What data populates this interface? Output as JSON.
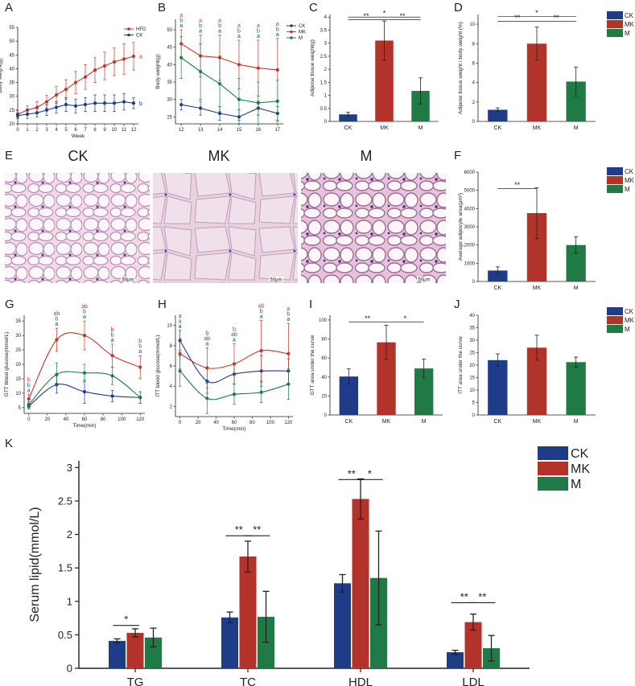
{
  "colors": {
    "CK": "#1f3c88",
    "MK": "#b3322a",
    "M": "#1f7a45",
    "HFD": "#c0392b"
  },
  "groups": [
    "CK",
    "MK",
    "M"
  ],
  "panel_labels": {
    "A": "A",
    "B": "B",
    "C": "C",
    "D": "D",
    "E": "E",
    "F": "F",
    "G": "G",
    "H": "H",
    "I": "I",
    "J": "J",
    "K": "K"
  },
  "histology": {
    "titles": [
      "CK",
      "MK",
      "M"
    ],
    "scale_label": "50μm"
  },
  "chart_data": [
    {
      "panel": "A",
      "type": "line",
      "ylabel": "Body weight(g)",
      "xlabel": "Week",
      "ylim": [
        20,
        55
      ],
      "yticks": [
        20,
        25,
        30,
        35,
        40,
        45,
        50,
        55
      ],
      "xlim": [
        0,
        12.5
      ],
      "xticks": [
        0,
        1,
        2,
        3,
        4,
        5,
        6,
        7,
        8,
        9,
        10,
        11,
        12
      ],
      "x": [
        0,
        1,
        2,
        3,
        4,
        5,
        6,
        7,
        8,
        9,
        10,
        11,
        12
      ],
      "series": [
        {
          "name": "HFD",
          "color": "#c0392b",
          "values": [
            23.5,
            25,
            26,
            28,
            30.5,
            32.5,
            35,
            37,
            39.5,
            41,
            42.5,
            43.5,
            44.5
          ],
          "err": [
            1.2,
            1.5,
            2,
            2.3,
            3,
            3.5,
            4,
            4.5,
            4.5,
            5,
            5,
            5.5,
            5
          ],
          "letter": "a"
        },
        {
          "name": "CK",
          "color": "#1f3c88",
          "values": [
            23,
            23.5,
            24,
            25,
            26,
            27,
            26.5,
            27,
            27.5,
            27.5,
            27.5,
            28,
            27.5
          ],
          "err": [
            1,
            1.5,
            1.5,
            2,
            2,
            2.5,
            2.5,
            2.5,
            3,
            3,
            3,
            3,
            2
          ],
          "letter": "b"
        }
      ]
    },
    {
      "panel": "B",
      "type": "line",
      "ylabel": "Body weight(g)",
      "ylim": [
        23,
        53
      ],
      "yticks": [
        25,
        30,
        35,
        40,
        45,
        50
      ],
      "xlim": [
        11.7,
        17.3
      ],
      "xticks": [
        12,
        13,
        14,
        15,
        16,
        17
      ],
      "x": [
        12,
        13,
        14,
        15,
        16,
        17
      ],
      "series": [
        {
          "name": "CK",
          "color": "#1f3c88",
          "values": [
            28.5,
            27.5,
            26,
            25,
            27.5,
            26
          ],
          "err": [
            1.5,
            2,
            2,
            2,
            2,
            2
          ]
        },
        {
          "name": "MK",
          "color": "#c0392b",
          "values": [
            46,
            42.5,
            42,
            40,
            39,
            38.5
          ],
          "err": [
            4,
            6,
            6.5,
            7,
            8,
            9
          ]
        },
        {
          "name": "M",
          "color": "#1f7a45",
          "values": [
            42,
            38,
            34.5,
            30,
            29,
            29.5
          ],
          "err": [
            6,
            8,
            8,
            6,
            6,
            6
          ]
        }
      ],
      "letters": [
        [
          "a",
          "a",
          "b"
        ],
        [
          "a",
          "a",
          "b"
        ],
        [
          "a",
          "a",
          "b"
        ],
        [
          "a",
          "a",
          "b"
        ],
        [
          "a",
          "a",
          "b"
        ],
        [
          "a",
          "a",
          "b"
        ]
      ]
    },
    {
      "panel": "C",
      "type": "bar",
      "ylabel": "Adipose tissue weight(g)",
      "ylim": [
        0,
        4.1
      ],
      "yticks": [
        0,
        0.5,
        1.0,
        1.5,
        2.0,
        2.5,
        3.0,
        3.5,
        4.0
      ],
      "categories": [
        "CK",
        "MK",
        "M"
      ],
      "values": [
        0.27,
        3.1,
        1.17
      ],
      "err": [
        0.08,
        0.75,
        0.5
      ],
      "sig": [
        {
          "from": 0,
          "to": 2,
          "label": "*",
          "y": 4.0
        },
        {
          "from": 0,
          "to": 1,
          "label": "**",
          "y": 3.9
        },
        {
          "from": 1,
          "to": 2,
          "label": "**",
          "y": 3.9
        }
      ]
    },
    {
      "panel": "D",
      "type": "bar",
      "ylabel": "Adipose tissue weight / body weight (%)",
      "ylim": [
        0,
        11
      ],
      "yticks": [
        0,
        2,
        4,
        6,
        8,
        10
      ],
      "categories": [
        "CK",
        "MK",
        "M"
      ],
      "values": [
        1.2,
        8,
        4.1
      ],
      "err": [
        0.2,
        1.7,
        1.5
      ],
      "sig": [
        {
          "from": 0,
          "to": 2,
          "label": "*",
          "y": 10.8
        },
        {
          "from": 0,
          "to": 1,
          "label": "**",
          "y": 10.3
        },
        {
          "from": 1,
          "to": 2,
          "label": "**",
          "y": 10.3
        }
      ]
    },
    {
      "panel": "F",
      "type": "bar",
      "ylabel": "Average adipocyte area(μm²)",
      "ylim": [
        0,
        6000
      ],
      "yticks": [
        0,
        1000,
        2000,
        3000,
        4000,
        5000,
        6000
      ],
      "categories": [
        "CK",
        "MK",
        "M"
      ],
      "values": [
        600,
        3750,
        2000
      ],
      "err": [
        200,
        1400,
        450
      ],
      "sig": [
        {
          "from": 0,
          "to": 1,
          "label": "**",
          "y": 5100
        }
      ]
    },
    {
      "panel": "G",
      "type": "line",
      "ylabel": "GTT blood glucose(mmol/L)",
      "xlabel": "Time(min)",
      "ylim": [
        3,
        37
      ],
      "yticks": [
        5,
        10,
        15,
        20,
        25,
        30,
        35
      ],
      "xlim": [
        -5,
        125
      ],
      "xticks": [
        0,
        20,
        40,
        60,
        80,
        100,
        120
      ],
      "x": [
        0,
        30,
        60,
        90,
        120
      ],
      "series": [
        {
          "name": "CK",
          "color": "#1f3c88",
          "values": [
            5.5,
            13,
            10.5,
            9,
            8.5
          ],
          "err": [
            1,
            3,
            4,
            2,
            2
          ],
          "smooth": true
        },
        {
          "name": "MK",
          "color": "#c0392b",
          "values": [
            8,
            28.5,
            30,
            23,
            19
          ],
          "err": [
            1.5,
            4,
            5,
            4,
            4
          ],
          "smooth": true
        },
        {
          "name": "M",
          "color": "#1f7a45",
          "values": [
            6,
            16.5,
            17,
            16,
            8.5
          ],
          "err": [
            1,
            4,
            3,
            3,
            2
          ],
          "smooth": true
        }
      ],
      "letters": [
        [
          "a",
          "b",
          "b"
        ],
        [
          "a",
          "ab",
          "b"
        ],
        [
          "a",
          "ab",
          "b"
        ],
        [
          "a",
          "b",
          "b"
        ],
        [
          "a",
          "b",
          "b"
        ]
      ]
    },
    {
      "panel": "H",
      "type": "line",
      "ylabel": "ITT blood glucose(mmol/L)",
      "xlabel": "Time(min)",
      "ylim": [
        1,
        11
      ],
      "yticks": [
        2,
        4,
        6,
        8,
        10
      ],
      "xlim": [
        -5,
        125
      ],
      "xticks": [
        0,
        20,
        40,
        60,
        80,
        100,
        120
      ],
      "x": [
        0,
        30,
        60,
        90,
        120
      ],
      "series": [
        {
          "name": "CK",
          "color": "#1f3c88",
          "values": [
            8.5,
            4.5,
            5.2,
            5.5,
            5.5
          ],
          "err": [
            1,
            1.2,
            1,
            1.5,
            1.2
          ],
          "smooth": true
        },
        {
          "name": "MK",
          "color": "#c0392b",
          "values": [
            7.2,
            5.8,
            6.2,
            7.5,
            7.2
          ],
          "err": [
            1.5,
            2,
            2,
            3,
            3
          ],
          "smooth": true
        },
        {
          "name": "M",
          "color": "#1f7a45",
          "values": [
            5.5,
            2.8,
            3.2,
            3.4,
            4.2
          ],
          "err": [
            1.5,
            1.5,
            1,
            1,
            1.5
          ],
          "smooth": true
        }
      ],
      "letters": [
        [
          "a",
          "a",
          "a"
        ],
        [
          "a",
          "b",
          "ab"
        ],
        [
          "a",
          "b",
          "ab"
        ],
        [
          "a",
          "ab",
          "b"
        ],
        [
          "a",
          "a",
          "b"
        ]
      ]
    },
    {
      "panel": "I",
      "type": "bar",
      "ylabel": "GTT area under the curve",
      "ylim": [
        0,
        105
      ],
      "yticks": [
        0,
        20,
        40,
        60,
        80,
        100
      ],
      "categories": [
        "CK",
        "MK",
        "M"
      ],
      "values": [
        40.5,
        76.5,
        49
      ],
      "err": [
        8,
        18,
        10
      ],
      "sig": [
        {
          "from": 0,
          "to": 1,
          "label": "**",
          "y": 98
        },
        {
          "from": 1,
          "to": 2,
          "label": "*",
          "y": 98
        }
      ]
    },
    {
      "panel": "J",
      "type": "bar",
      "ylabel": "ITT area under the curve",
      "ylim": [
        0,
        40
      ],
      "yticks": [
        0,
        5,
        10,
        15,
        20,
        25,
        30,
        35,
        40
      ],
      "categories": [
        "CK",
        "MK",
        "M"
      ],
      "values": [
        22,
        27,
        21.2
      ],
      "err": [
        2.5,
        5,
        2
      ]
    },
    {
      "panel": "K",
      "type": "bar",
      "ylabel": "Serum lipid(mmol/L)",
      "ylim": [
        0,
        3.1
      ],
      "yticks": [
        0,
        0.5,
        1.0,
        1.5,
        2.0,
        2.5,
        3.0
      ],
      "categories": [
        "TG",
        "TC",
        "HDL",
        "LDL"
      ],
      "series": [
        {
          "name": "CK",
          "values": [
            0.41,
            0.76,
            1.27,
            0.24
          ],
          "err": [
            0.03,
            0.08,
            0.13,
            0.03
          ]
        },
        {
          "name": "MK",
          "values": [
            0.53,
            1.67,
            2.53,
            0.69
          ],
          "err": [
            0.06,
            0.23,
            0.3,
            0.12
          ]
        },
        {
          "name": "M",
          "values": [
            0.46,
            0.77,
            1.35,
            0.3
          ],
          "err": [
            0.14,
            0.38,
            0.7,
            0.19
          ]
        }
      ],
      "sig": [
        {
          "group": 0,
          "from": 0,
          "to": 1,
          "label": "*",
          "y": 0.64
        },
        {
          "group": 1,
          "from": 0,
          "to": 1,
          "label": "**",
          "y": 1.98
        },
        {
          "group": 1,
          "from": 1,
          "to": 2,
          "label": "**",
          "y": 1.98
        },
        {
          "group": 2,
          "from": 0,
          "to": 1,
          "label": "**",
          "y": 2.82
        },
        {
          "group": 2,
          "from": 1,
          "to": 2,
          "label": "*",
          "y": 2.82
        },
        {
          "group": 3,
          "from": 0,
          "to": 1,
          "label": "**",
          "y": 0.98
        },
        {
          "group": 3,
          "from": 1,
          "to": 2,
          "label": "**",
          "y": 0.98
        }
      ]
    }
  ]
}
